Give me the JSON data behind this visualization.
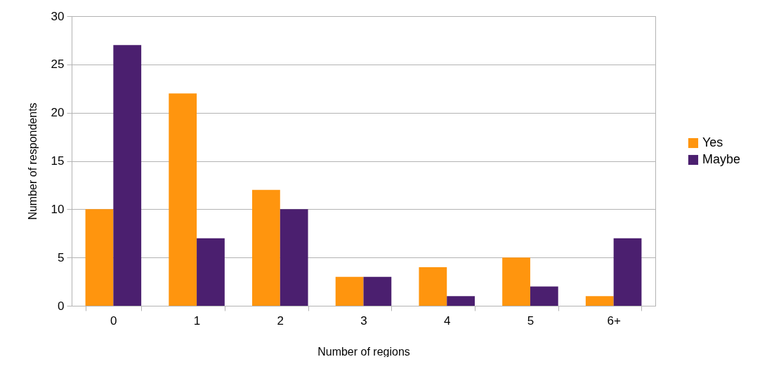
{
  "chart_data": {
    "type": "bar",
    "xlabel": "Number of regions",
    "ylabel": "Number of respondents",
    "categories": [
      "0",
      "1",
      "2",
      "3",
      "4",
      "5",
      "6+"
    ],
    "series": [
      {
        "name": "Yes",
        "color": "#ff950e",
        "values": [
          10,
          22,
          12,
          3,
          4,
          5,
          1
        ]
      },
      {
        "name": "Maybe",
        "color": "#4b1f6f",
        "values": [
          27,
          7,
          10,
          3,
          1,
          2,
          7
        ]
      }
    ],
    "ylim": [
      0,
      30
    ],
    "yticks": [
      0,
      5,
      10,
      15,
      20,
      25,
      30
    ],
    "grid": "y",
    "legend": "right"
  }
}
